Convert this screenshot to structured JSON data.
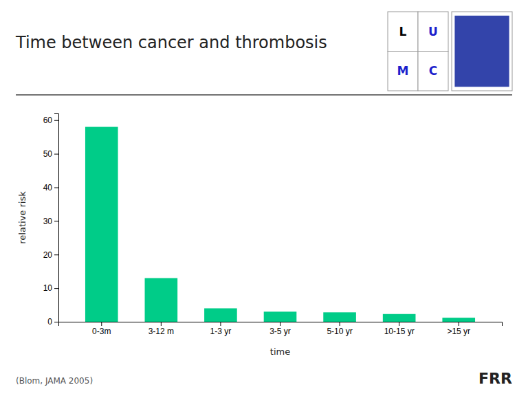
{
  "chart_data": {
    "type": "bar",
    "title": "Time between cancer and thrombosis",
    "categories": [
      "0-3m",
      "3-12 m",
      "1-3 yr",
      "3-5 yr",
      "5-10 yr",
      "10-15 yr",
      ">15 yr"
    ],
    "values": [
      58,
      13,
      4,
      3,
      2.8,
      2.3,
      1.2
    ],
    "color": "#00CC88",
    "xlabel": "time",
    "ylabel": "relative risk",
    "ylim": [
      0,
      62
    ],
    "yticks": [
      0,
      10,
      20,
      30,
      40,
      50,
      60
    ],
    "grid": false,
    "annotations": [
      "(Blom, JAMA 2005)",
      "FRR",
      "L",
      "U",
      "M",
      "C"
    ]
  }
}
